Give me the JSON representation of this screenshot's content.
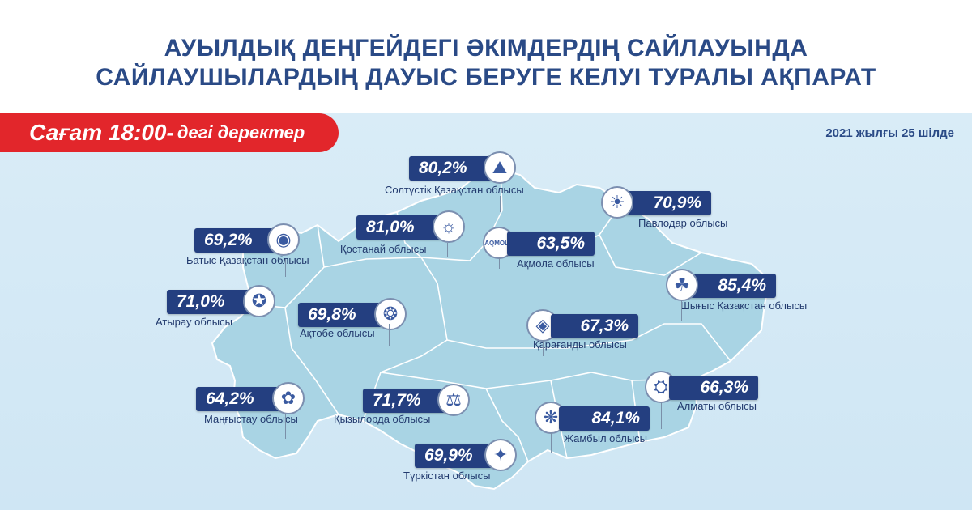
{
  "title": {
    "line1": "АУЫЛДЫҚ ДЕҢГЕЙДЕГІ ӘКІМДЕРДІҢ САЙЛАУЫНДА",
    "line2": "САЙЛАУШЫЛАРДЫҢ ДАУЫС БЕРУГЕ КЕЛУІ ТУРАЛЫ АҚПАРАТ"
  },
  "banner": {
    "prefix": "Сағат 18:00-",
    "suffix": "дегі деректер",
    "color": "#e2262b"
  },
  "date": "2021 жылғы 25 шілде",
  "colors": {
    "accent": "#243f80",
    "map": "#a9d4e4",
    "background": "#d9ecf7"
  },
  "regions": [
    {
      "name": "Солтүстік Қазақстан облысы",
      "value": "80,2%",
      "icon": "north-kz-emblem"
    },
    {
      "name": "Павлодар облысы",
      "value": "70,9%",
      "icon": "pavlodar-emblem"
    },
    {
      "name": "Батыс Қазақстан облысы",
      "value": "69,2%",
      "icon": "west-kz-emblem"
    },
    {
      "name": "Қостанай облысы",
      "value": "81,0%",
      "icon": "kostanay-emblem"
    },
    {
      "name": "Ақмола облысы",
      "value": "63,5%",
      "icon": "akmola-emblem",
      "icon_text": "AQMOLA"
    },
    {
      "name": "Шығыс Қазақстан облысы",
      "value": "85,4%",
      "icon": "east-kz-emblem"
    },
    {
      "name": "Атырау облысы",
      "value": "71,0%",
      "icon": "atyrau-emblem"
    },
    {
      "name": "Ақтөбе облысы",
      "value": "69,8%",
      "icon": "aktobe-emblem"
    },
    {
      "name": "Қарағанды облысы",
      "value": "67,3%",
      "icon": "karaganda-emblem"
    },
    {
      "name": "Маңғыстау облысы",
      "value": "64,2%",
      "icon": "mangystau-emblem"
    },
    {
      "name": "Қызылорда облысы",
      "value": "71,7%",
      "icon": "kyzylorda-emblem"
    },
    {
      "name": "Алматы облысы",
      "value": "66,3%",
      "icon": "almaty-emblem"
    },
    {
      "name": "Жамбыл облысы",
      "value": "84,1%",
      "icon": "zhambyl-emblem"
    },
    {
      "name": "Түркістан облысы",
      "value": "69,9%",
      "icon": "turkistan-emblem"
    }
  ]
}
